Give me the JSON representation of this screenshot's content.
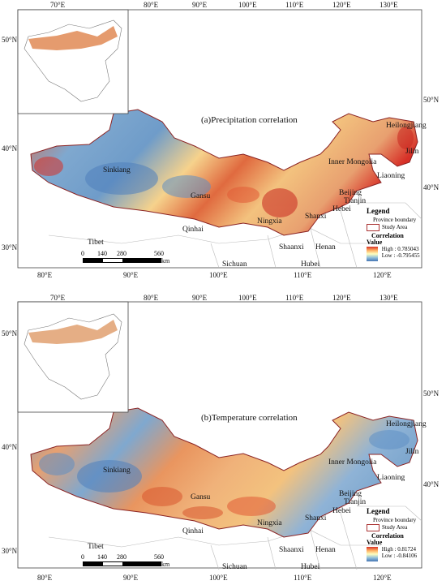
{
  "panels": [
    {
      "id": "a",
      "title": "(a)Precipitation correlation",
      "top_lon_labels": [
        "70°E",
        "80°E",
        "90°E",
        "100°E",
        "110°E",
        "120°E",
        "130°E"
      ],
      "bottom_lon_labels": [
        "80°E",
        "90°E",
        "100°E",
        "110°E",
        "120°E"
      ],
      "left_lat_labels": [
        "40°N",
        "30°N"
      ],
      "right_lat_labels": [
        "50°N",
        "40°N"
      ],
      "inset_lat_label": "50°N",
      "provinces": [
        "Heilongjiang",
        "Jilin",
        "Inner Mongolia",
        "Liaoning",
        "Sinkiang",
        "Gansu",
        "Beijing",
        "Tianjin",
        "Hebei",
        "Shanxi",
        "Ningxia",
        "Qinhai",
        "Tibet",
        "Shaanxi",
        "Henan",
        "Sichuan",
        "Hubei"
      ],
      "legend": {
        "title": "Legend",
        "boundary_label": "Province boundary",
        "study_area_label": "Study Area",
        "correlation_label": "Correlation",
        "value_label": "Value",
        "high_label": "High : 0.785043",
        "low_label": "Low : -0.795455"
      },
      "scale": {
        "ticks": [
          "0",
          "140",
          "280",
          "560"
        ],
        "unit": "km"
      }
    },
    {
      "id": "b",
      "title": "(b)Temperature correlation",
      "top_lon_labels": [
        "70°E",
        "80°E",
        "90°E",
        "100°E",
        "110°E",
        "120°E",
        "130°E"
      ],
      "bottom_lon_labels": [
        "80°E",
        "90°E",
        "100°E",
        "110°E",
        "120°E"
      ],
      "left_lat_labels": [
        "40°N",
        "30°N"
      ],
      "right_lat_labels": [
        "50°N",
        "40°N"
      ],
      "inset_lat_label": "50°N",
      "provinces": [
        "Heilongjiang",
        "Jilin",
        "Inner Mongolia",
        "Liaoning",
        "Sinkiang",
        "Gansu",
        "Beijing",
        "Tianjin",
        "Hebei",
        "Shanxi",
        "Ningxia",
        "Qinhai",
        "Tibet",
        "Shaanxi",
        "Henan",
        "Sichuan",
        "Hubei"
      ],
      "legend": {
        "title": "Legend",
        "boundary_label": "Province boundary",
        "study_area_label": "Study Area",
        "correlation_label": "Correlation",
        "value_label": "Value",
        "high_label": "High : 0.81724",
        "low_label": "Low : -0.84106"
      },
      "scale": {
        "ticks": [
          "0",
          "140",
          "280",
          "560"
        ],
        "unit": "km"
      }
    }
  ],
  "colors": {
    "high": "#d73027",
    "mid_high": "#fdae61",
    "mid": "#ffffbf",
    "mid_low": "#91bfdb",
    "low": "#4575b4",
    "boundary": "#8b2323",
    "province_lines": "#bbbbbb"
  }
}
